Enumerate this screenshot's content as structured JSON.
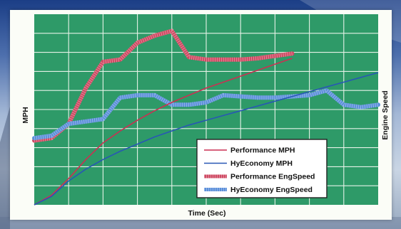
{
  "chart_data": {
    "type": "line",
    "xlabel": "Time (Sec)",
    "ylabel": "MPH",
    "y2label": "Engine Speed",
    "grid": true,
    "legend_position": "bottom-right",
    "colors": {
      "plot_background": "#2e9a68",
      "grid": "#e6f2e7",
      "performance": "#cc2f52",
      "hyeconomy": "#2857b5",
      "performance_engspeed": "#cf4a63",
      "hyeconomy_engspeed": "#5b8fda"
    },
    "x": [
      0,
      1,
      2,
      3,
      4,
      5,
      6,
      7,
      8,
      9,
      10,
      11,
      12,
      13,
      14,
      15,
      16,
      17,
      18,
      19,
      20
    ],
    "series": [
      {
        "name": "Performance MPH",
        "axis": "left",
        "style": "thin",
        "values": [
          0.0,
          0.4,
          1.1,
          1.9,
          2.6,
          3.1,
          3.55,
          3.95,
          4.3,
          4.6,
          4.9,
          5.15,
          5.4,
          5.65,
          5.9,
          6.15,
          null,
          null,
          null,
          null,
          null
        ]
      },
      {
        "name": "HyEconomy MPH",
        "axis": "left",
        "style": "thin",
        "values": [
          0.0,
          0.35,
          1.0,
          1.5,
          1.9,
          2.25,
          2.55,
          2.85,
          3.1,
          3.35,
          3.55,
          3.75,
          3.95,
          4.15,
          4.35,
          4.55,
          4.75,
          4.95,
          5.15,
          5.35,
          5.55
        ]
      },
      {
        "name": "Performance EngSpeed",
        "axis": "right",
        "style": "thick",
        "values": [
          2.7,
          2.8,
          3.4,
          4.9,
          6.0,
          6.1,
          6.8,
          7.1,
          7.3,
          6.2,
          6.1,
          6.1,
          6.1,
          6.15,
          6.25,
          6.35,
          null,
          null,
          null,
          null,
          null
        ]
      },
      {
        "name": "HyEconomy EngSpeed",
        "axis": "right",
        "style": "thick",
        "values": [
          2.8,
          2.9,
          3.4,
          3.5,
          3.6,
          4.5,
          4.6,
          4.6,
          4.2,
          4.2,
          4.3,
          4.6,
          4.55,
          4.5,
          4.5,
          4.55,
          4.6,
          4.8,
          4.2,
          4.1,
          4.2
        ]
      }
    ],
    "legend": [
      "Performance MPH",
      "HyEconomy MPH",
      "Performance EngSpeed",
      "HyEconomy EngSpeed"
    ]
  }
}
